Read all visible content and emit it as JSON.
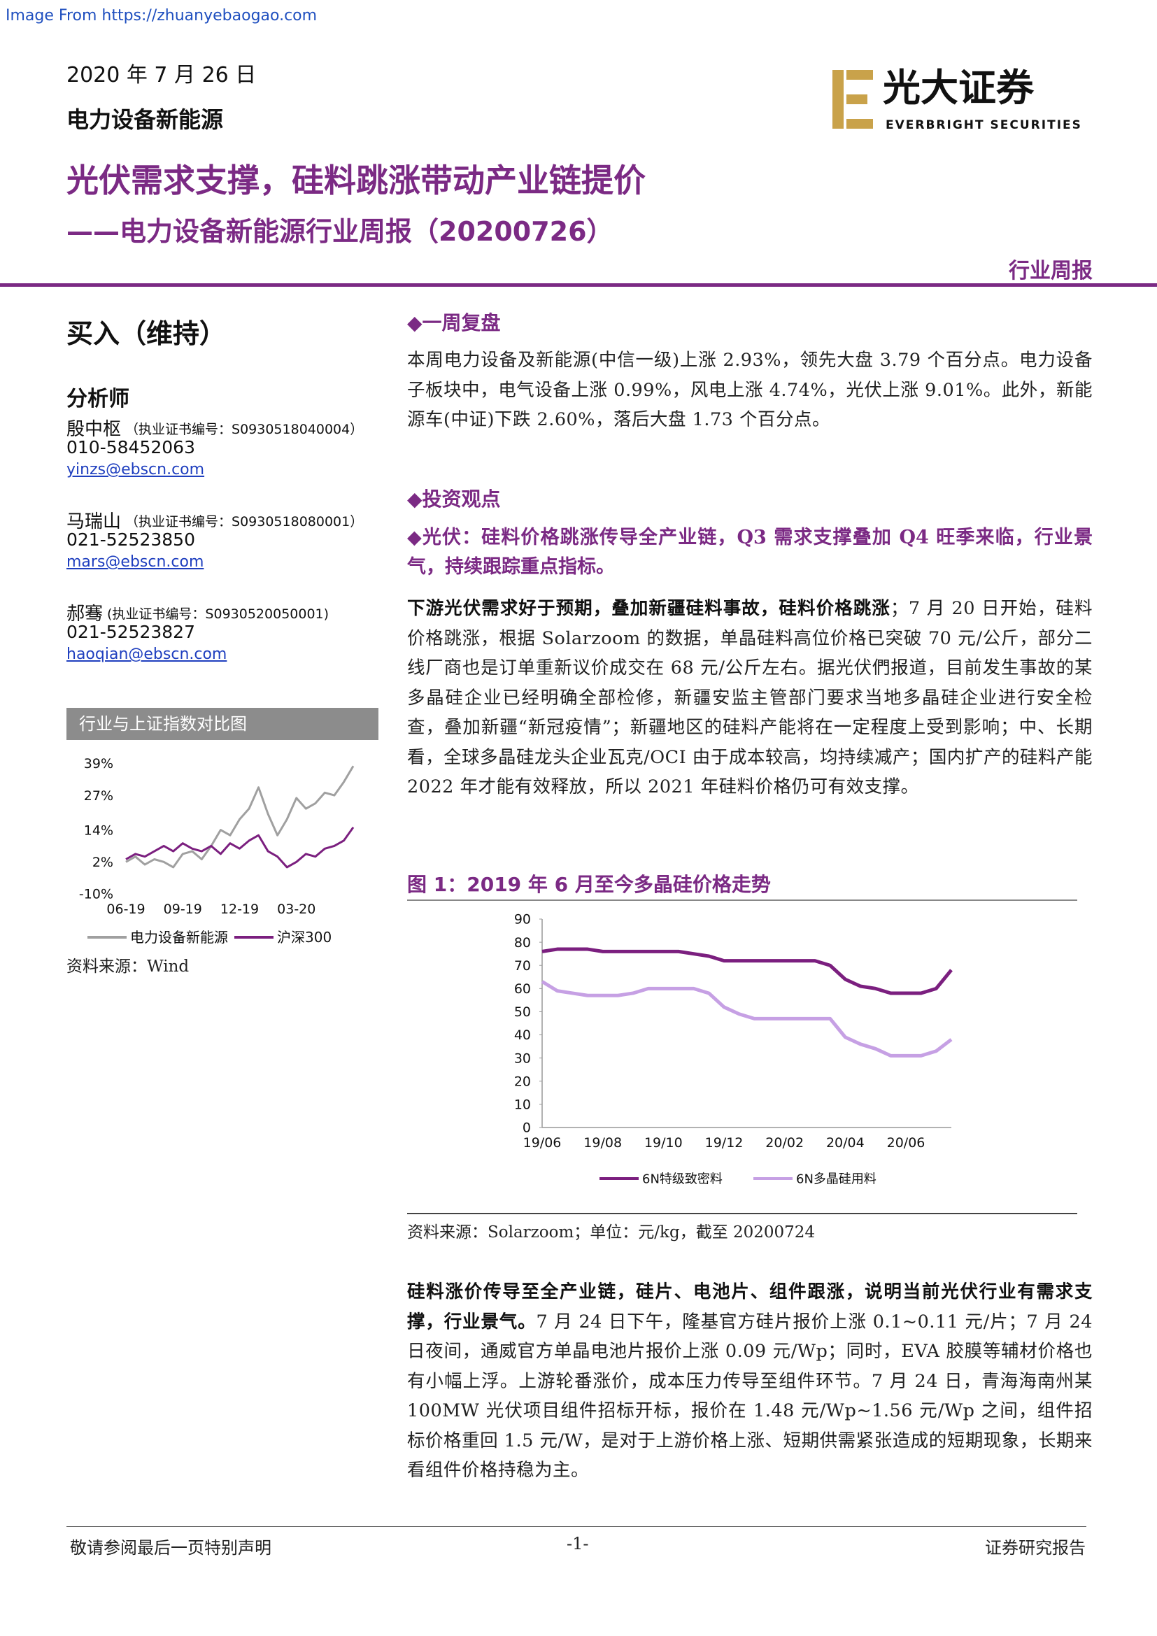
{
  "watermark": "Image From https://zhuanyebaogao.com",
  "header": {
    "date": "2020 年 7 月 26 日",
    "sector": "电力设备新能源",
    "logo_cn": "光大证券",
    "logo_en": "EVERBRIGHT SECURITIES",
    "title": "光伏需求支撑，硅料跳涨带动产业链提价",
    "subtitle": "——电力设备新能源行业周报（20200726）",
    "report_type": "行业周报"
  },
  "sidebar": {
    "rating": "买入（维持）",
    "analysts_title": "分析师",
    "analysts": [
      {
        "name": "殷中枢",
        "cert": "（执业证书编号：S0930518040004）",
        "phone": "010-58452063",
        "email": "yinzs@ebscn.com"
      },
      {
        "name": "马瑞山",
        "cert": "（执业证书编号：S0930518080001）",
        "phone": "021-52523850",
        "email": "mars@ebscn.com"
      },
      {
        "name": "郝骞",
        "cert": "(执业证书编号：S0930520050001)",
        "phone": "021-52523827",
        "email": "haoqian@ebscn.com"
      }
    ]
  },
  "chart_data": [
    {
      "type": "line",
      "title": "行业与上证指数对比图",
      "categories": [
        "06-19",
        null,
        null,
        null,
        null,
        null,
        "09-19",
        null,
        null,
        null,
        null,
        null,
        "12-19",
        null,
        null,
        null,
        null,
        null,
        "03-20",
        null,
        null,
        null,
        null,
        null,
        null
      ],
      "series": [
        {
          "name": "电力设备新能源",
          "color": "#a0a0a0",
          "values": [
            2,
            4,
            1,
            3,
            2,
            0,
            5,
            6,
            3,
            8,
            14,
            12,
            18,
            22,
            30,
            20,
            12,
            18,
            26,
            22,
            24,
            28,
            27,
            32,
            38
          ]
        },
        {
          "name": "沪深300",
          "color": "#7b1f7f",
          "values": [
            3,
            5,
            4,
            6,
            8,
            6,
            9,
            7,
            6,
            8,
            5,
            9,
            7,
            10,
            12,
            6,
            4,
            0,
            2,
            5,
            4,
            7,
            8,
            10,
            15
          ]
        }
      ],
      "ylim": [
        -10,
        42
      ],
      "yticks": [
        {
          "value": 39,
          "label": "39%"
        },
        {
          "value": 27,
          "label": "27%"
        },
        {
          "value": 14,
          "label": "14%"
        },
        {
          "value": 2,
          "label": "2%"
        },
        {
          "value": -10,
          "label": "-10%"
        }
      ],
      "source": "资料来源：Wind"
    },
    {
      "type": "line",
      "title": "图 1：2019 年 6 月至今多晶硅价格走势",
      "categories": [
        "19/06",
        null,
        null,
        null,
        "19/08",
        null,
        null,
        null,
        "19/10",
        null,
        null,
        null,
        "19/12",
        null,
        null,
        null,
        "20/02",
        null,
        null,
        null,
        "20/04",
        null,
        null,
        null,
        "20/06",
        null,
        null,
        null
      ],
      "series": [
        {
          "name": "6N特级致密料",
          "color": "#7b1f7f",
          "values": [
            76,
            77,
            77,
            77,
            76,
            76,
            76,
            76,
            76,
            76,
            75,
            74,
            72,
            72,
            72,
            72,
            72,
            72,
            72,
            70,
            64,
            61,
            60,
            58,
            58,
            58,
            60,
            68
          ]
        },
        {
          "name": "6N多晶硅用料",
          "color": "#c6a0e4",
          "values": [
            63,
            59,
            58,
            57,
            57,
            57,
            58,
            60,
            60,
            60,
            60,
            58,
            52,
            49,
            47,
            47,
            47,
            47,
            47,
            47,
            39,
            36,
            34,
            31,
            31,
            31,
            33,
            38
          ]
        }
      ],
      "ylim": [
        0,
        90
      ],
      "yticks": [
        90,
        80,
        70,
        60,
        50,
        40,
        30,
        20,
        10,
        0
      ],
      "source": "资料来源：Solarzoom；单位：元/kg，截至 20200724"
    }
  ],
  "main": {
    "weekly_heading": "◆一周复盘",
    "weekly_text": "本周电力设备及新能源(中信一级)上涨 2.93%，领先大盘 3.79 个百分点。电力设备子板块中，电气设备上涨 0.99%，风电上涨 4.74%，光伏上涨 9.01%。此外，新能源车(中证)下跌 2.60%，落后大盘 1.73 个百分点。",
    "view_heading": "◆投资观点",
    "pv_heading": "◆光伏：硅料价格跳涨传导全产业链，Q3 需求支撑叠加 Q4 旺季来临，行业景气，持续跟踪重点指标。",
    "para1": {
      "bold": "下游光伏需求好于预期，叠加新疆硅料事故，硅料价格跳涨",
      "text": "；7 月 20 日开始，硅料价格跳涨，根据 Solarzoom 的数据，单晶硅料高位价格已突破 70 元/公斤，部分二线厂商也是订单重新议价成交在 68 元/公斤左右。据光伏們报道，目前发生事故的某多晶硅企业已经明确全部检修，新疆安监主管部门要求当地多晶硅企业进行安全检查，叠加新疆“新冠疫情”；新疆地区的硅料产能将在一定程度上受到影响；中、长期看，全球多晶硅龙头企业瓦克/OCI 由于成本较高，均持续减产；国内扩产的硅料产能 2022 年才能有效释放，所以 2021 年硅料价格仍可有效支撑。"
    },
    "para2": {
      "bold": "硅料涨价传导至全产业链，硅片、电池片、组件跟涨，说明当前光伏行业有需求支撑，行业景气。",
      "text": "7 月 24 日下午，隆基官方硅片报价上涨 0.1~0.11 元/片；7 月 24 日夜间，通威官方单晶电池片报价上涨 0.09 元/Wp；同时，EVA 胶膜等辅材价格也有小幅上浮。上游轮番涨价，成本压力传导至组件环节。7 月 24 日，青海海南州某 100MW 光伏项目组件招标开标，报价在 1.48 元/Wp~1.56 元/Wp 之间，组件招标价格重回 1.5 元/W，是对于上游价格上涨、短期供需紧张造成的短期现象，长期来看组件价格持稳为主。"
    }
  },
  "footer": {
    "left": "敬请参阅最后一页特别声明",
    "center": "-1-",
    "right": "证券研究报告"
  }
}
